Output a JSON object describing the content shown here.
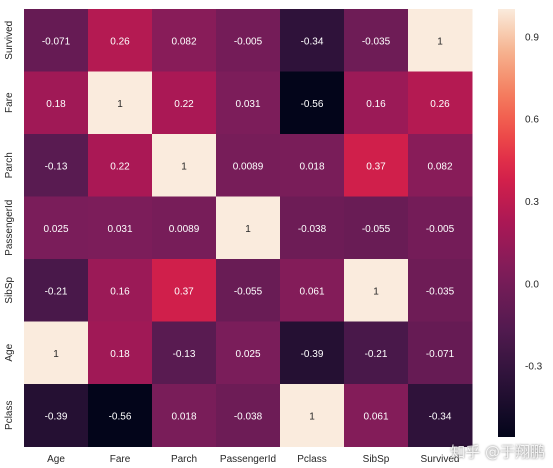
{
  "chart_data": {
    "type": "heatmap",
    "rows": [
      "Survived",
      "Fare",
      "Parch",
      "PassengerId",
      "SibSp",
      "Age",
      "Pclass"
    ],
    "columns": [
      "Age",
      "Fare",
      "Parch",
      "PassengerId",
      "Pclass",
      "SibSp",
      "Survived"
    ],
    "values": [
      [
        -0.071,
        0.26,
        0.082,
        -0.005,
        -0.34,
        -0.035,
        1
      ],
      [
        0.18,
        1,
        0.22,
        0.031,
        -0.56,
        0.16,
        0.26
      ],
      [
        -0.13,
        0.22,
        1,
        0.0089,
        0.018,
        0.37,
        0.082
      ],
      [
        0.025,
        0.031,
        0.0089,
        1,
        -0.038,
        -0.055,
        -0.005
      ],
      [
        -0.21,
        0.16,
        0.37,
        -0.055,
        0.061,
        1,
        -0.035
      ],
      [
        1,
        0.18,
        -0.13,
        0.025,
        -0.39,
        -0.21,
        -0.071
      ],
      [
        -0.39,
        -0.56,
        0.018,
        -0.038,
        1,
        0.061,
        -0.34
      ]
    ],
    "labels": [
      [
        "-0.071",
        "0.26",
        "0.082",
        "-0.005",
        "-0.34",
        "-0.035",
        "1"
      ],
      [
        "0.18",
        "1",
        "0.22",
        "0.031",
        "-0.56",
        "0.16",
        "0.26"
      ],
      [
        "-0.13",
        "0.22",
        "1",
        "0.0089",
        "0.018",
        "0.37",
        "0.082"
      ],
      [
        "0.025",
        "0.031",
        "0.0089",
        "1",
        "-0.038",
        "-0.055",
        "-0.005"
      ],
      [
        "-0.21",
        "0.16",
        "0.37",
        "-0.055",
        "0.061",
        "1",
        "-0.035"
      ],
      [
        "1",
        "0.18",
        "-0.13",
        "0.025",
        "-0.39",
        "-0.21",
        "-0.071"
      ],
      [
        "-0.39",
        "-0.56",
        "0.018",
        "-0.038",
        "1",
        "0.061",
        "-0.34"
      ]
    ],
    "colorbar": {
      "range": [
        -0.56,
        1
      ],
      "ticks": [
        -0.3,
        0.0,
        0.3,
        0.6,
        0.9
      ],
      "tick_labels": [
        "-0.3",
        "0.0",
        "0.3",
        "0.6",
        "0.9"
      ]
    },
    "colormap": "rocket",
    "title": "",
    "xlabel": "",
    "ylabel": ""
  },
  "watermark": "知乎 @于翔鹏"
}
